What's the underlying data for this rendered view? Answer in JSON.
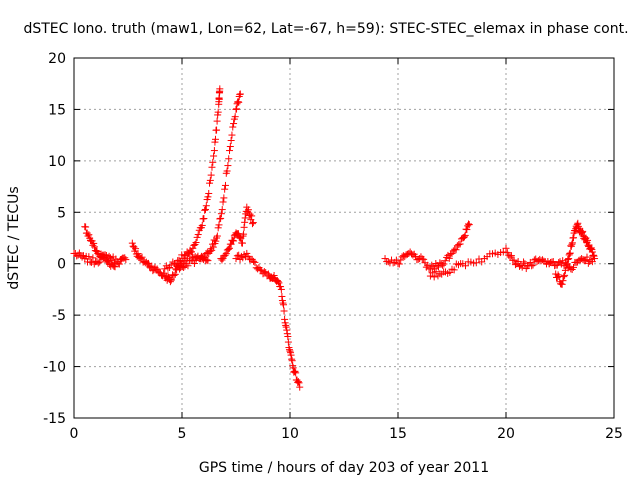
{
  "chart_data": {
    "type": "scatter",
    "title": "dSTEC Iono. truth (maw1, Lon=62, Lat=-67, h=59): STEC-STEC_elemax in phase cont.",
    "xlabel": "GPS time / hours of day 203 of year 2011",
    "ylabel": "dSTEC  / TECUs",
    "xlim": [
      0,
      25
    ],
    "ylim": [
      -15,
      20
    ],
    "xticks": [
      "0",
      "5",
      "10",
      "15",
      "20",
      "25"
    ],
    "yticks": [
      "-15",
      "-10",
      "-5",
      "0",
      "5",
      "10",
      "15",
      "20"
    ],
    "grid": true,
    "marker": "+",
    "color": "#ff0000",
    "series": [
      {
        "name": "",
        "segments": [
          {
            "x": [
              0.0,
              0.5,
              1.0,
              1.5,
              2.0,
              2.4
            ],
            "y": [
              1.0,
              0.5,
              0.2,
              0.8,
              0.2,
              0.4
            ]
          },
          {
            "x": [
              0.5,
              0.8,
              1.1,
              1.5,
              1.9
            ],
            "y": [
              3.6,
              2.2,
              1.0,
              0.3,
              -0.3
            ]
          },
          {
            "x": [
              2.7,
              3.0,
              3.4,
              3.8,
              4.2,
              4.5
            ],
            "y": [
              2.0,
              0.6,
              0.0,
              -0.6,
              -1.2,
              -1.6
            ]
          },
          {
            "x": [
              4.2,
              4.8,
              5.3,
              5.8,
              6.2
            ],
            "y": [
              -0.5,
              0.3,
              1.0,
              0.5,
              0.3
            ]
          },
          {
            "x": [
              4.5,
              5.0,
              5.5,
              5.9,
              6.2,
              6.5,
              6.7,
              6.75
            ],
            "y": [
              -1.5,
              0.0,
              1.5,
              3.5,
              6.5,
              11.0,
              15.5,
              17.0
            ]
          },
          {
            "x": [
              4.7,
              5.2,
              5.8,
              6.3,
              6.6,
              6.9,
              7.2,
              7.5,
              7.7
            ],
            "y": [
              -0.5,
              0.0,
              0.5,
              1.2,
              2.5,
              6.0,
              11.0,
              15.0,
              16.5
            ]
          },
          {
            "x": [
              6.8,
              7.2,
              7.5,
              7.8,
              8.0,
              8.3
            ],
            "y": [
              0.5,
              1.5,
              3.0,
              2.0,
              5.5,
              4.0
            ]
          },
          {
            "x": [
              7.5,
              8.0,
              8.5,
              9.0,
              9.3,
              9.6,
              9.8,
              10.0,
              10.2,
              10.45
            ],
            "y": [
              0.5,
              1.0,
              -0.5,
              -1.0,
              -1.5,
              -2.5,
              -6.0,
              -8.5,
              -10.5,
              -12.0
            ]
          },
          {
            "x": [
              14.4,
              15.0,
              15.5,
              16.0,
              16.5,
              17.0,
              17.5,
              18.0,
              18.3
            ],
            "y": [
              0.5,
              0.0,
              1.0,
              0.5,
              -0.5,
              0.0,
              1.0,
              2.5,
              3.8
            ]
          },
          {
            "x": [
              16.5,
              17.2,
              18.0,
              19.0,
              20.0,
              20.5,
              21.0,
              21.5,
              22.0
            ],
            "y": [
              -1.2,
              -0.8,
              0.0,
              0.5,
              1.5,
              0.0,
              -0.2,
              0.3,
              0.0
            ]
          },
          {
            "x": [
              22.3,
              22.6,
              22.9,
              23.1,
              23.3,
              23.5,
              23.7,
              23.9,
              24.1
            ],
            "y": [
              -1.0,
              -2.0,
              0.5,
              2.5,
              3.8,
              3.0,
              2.5,
              1.5,
              0.5
            ]
          },
          {
            "x": [
              22.0,
              22.5,
              23.0,
              23.5,
              24.0
            ],
            "y": [
              0.0,
              0.2,
              -0.5,
              0.5,
              0.2
            ]
          }
        ]
      }
    ]
  }
}
